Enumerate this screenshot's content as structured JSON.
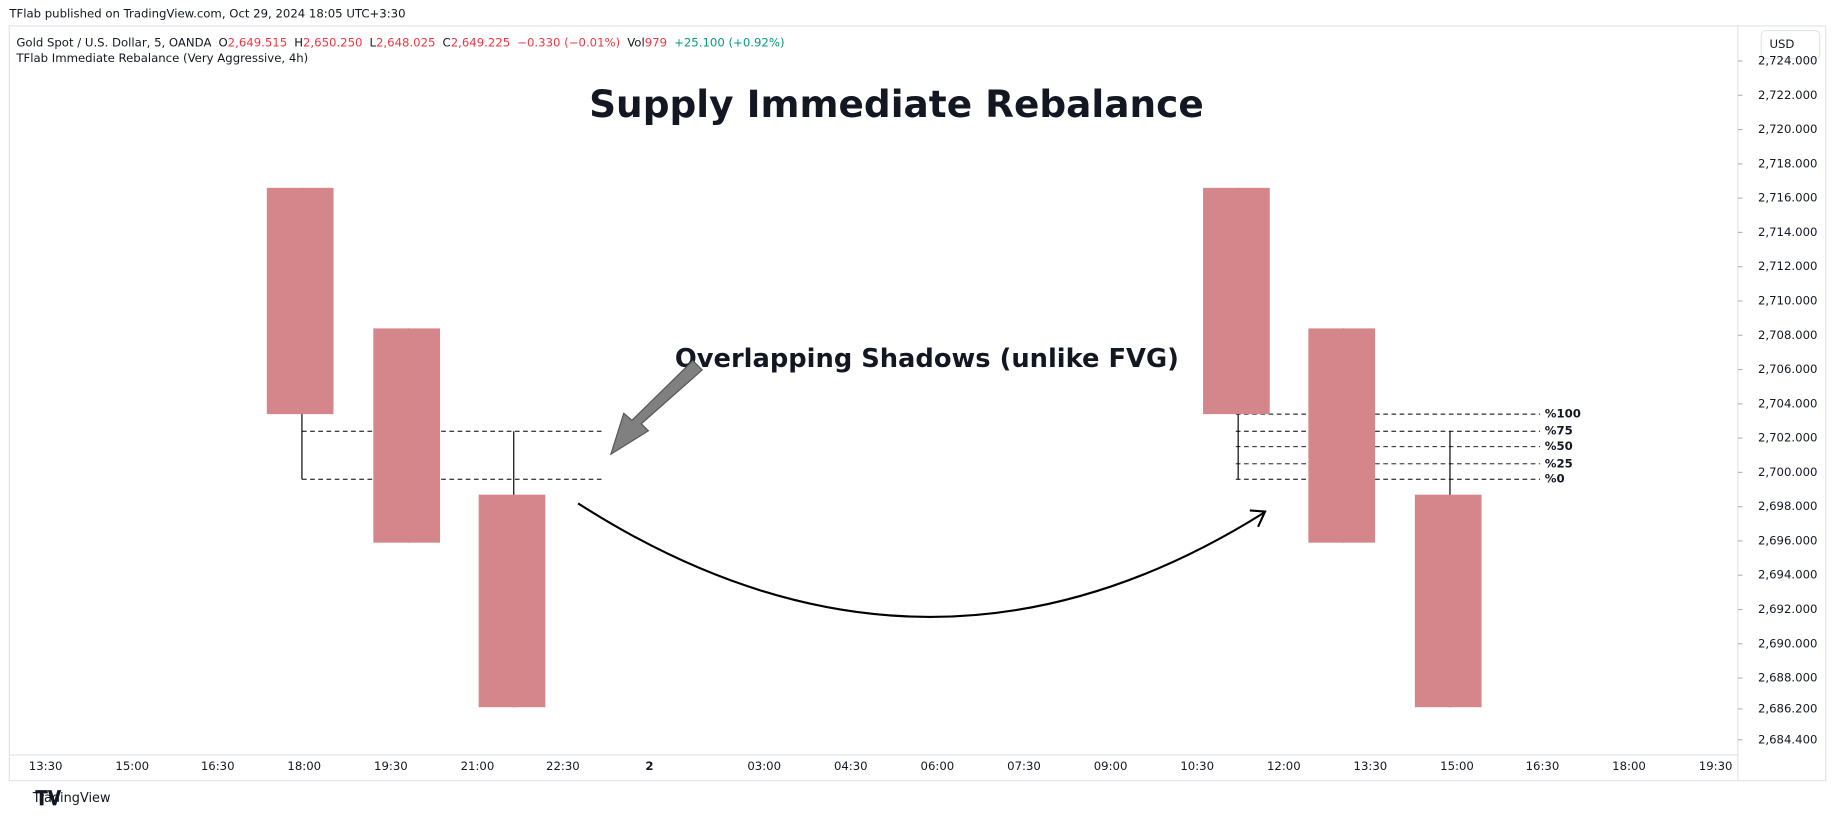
{
  "header": {
    "publisher": "TFlab published on TradingView.com, Oct 29, 2024 18:05 UTC+3:30",
    "symbol": "Gold Spot / U.S. Dollar, 5, OANDA",
    "ohlc": [
      {
        "key": "O",
        "value": "2,649.515"
      },
      {
        "key": "H",
        "value": "2,650.250"
      },
      {
        "key": "L",
        "value": "2,648.025"
      },
      {
        "key": "C",
        "value": "2,649.225"
      }
    ],
    "change": "−0.330 (−0.01%)",
    "vol_key": "Vol",
    "vol_value": "979",
    "vol_change": "+25.100 (+0.92%)",
    "indicator": "TFlab Immediate Rebalance (Very Aggressive, 4h)",
    "currency": "USD"
  },
  "footer": {
    "brand": "TradingView"
  },
  "chart_data": {
    "type": "candlestick",
    "title": "Supply Immediate Rebalance",
    "annotation": "Overlapping Shadows (unlike FVG)",
    "color": "#d4868b",
    "candles": [
      {
        "open": 2716.6,
        "high": 2716.6,
        "low": 2699.6,
        "close": 2703.4
      },
      {
        "open": 2708.4,
        "high": 2708.4,
        "low": 2695.9,
        "close": 2695.9
      },
      {
        "open": 2698.7,
        "high": 2702.4,
        "low": 2686.3,
        "close": 2686.3
      },
      {
        "open": 2716.6,
        "high": 2716.6,
        "low": 2699.6,
        "close": 2703.4
      },
      {
        "open": 2708.4,
        "high": 2708.4,
        "low": 2695.9,
        "close": 2695.9
      },
      {
        "open": 2698.7,
        "high": 2702.4,
        "low": 2686.3,
        "close": 2686.3
      }
    ],
    "levels": [
      {
        "label": "%100",
        "value": 2703.4
      },
      {
        "label": "%75",
        "value": 2702.4
      },
      {
        "label": "%50",
        "value": 2701.5
      },
      {
        "label": "%25",
        "value": 2700.5
      },
      {
        "label": "%0",
        "value": 2699.6
      }
    ],
    "x_labels": [
      "13:30",
      "15:00",
      "16:30",
      "18:00",
      "19:30",
      "21:00",
      "22:30",
      "2",
      "03:00",
      "04:30",
      "06:00",
      "07:30",
      "09:00",
      "10:30",
      "12:00",
      "13:30",
      "15:00",
      "16:30",
      "18:00",
      "19:30"
    ],
    "ylim": [
      2684.4,
      2724
    ],
    "yticks": [
      {
        "value": 2684.4,
        "label": "2,684.400"
      },
      {
        "value": 2686.2,
        "label": "2,686.200"
      },
      {
        "value": 2688,
        "label": "2,688.000"
      },
      {
        "value": 2690,
        "label": "2,690.000"
      },
      {
        "value": 2692,
        "label": "2,692.000"
      },
      {
        "value": 2694,
        "label": "2,694.000"
      },
      {
        "value": 2696,
        "label": "2,696.000"
      },
      {
        "value": 2698,
        "label": "2,698.000"
      },
      {
        "value": 2700,
        "label": "2,700.000"
      },
      {
        "value": 2702,
        "label": "2,702.000"
      },
      {
        "value": 2704,
        "label": "2,704.000"
      },
      {
        "value": 2706,
        "label": "2,706.000"
      },
      {
        "value": 2708,
        "label": "2,708.000"
      },
      {
        "value": 2710,
        "label": "2,710.000"
      },
      {
        "value": 2712,
        "label": "2,712.000"
      },
      {
        "value": 2714,
        "label": "2,714.000"
      },
      {
        "value": 2716,
        "label": "2,716.000"
      },
      {
        "value": 2718,
        "label": "2,718.000"
      },
      {
        "value": 2720,
        "label": "2,720.000"
      },
      {
        "value": 2722,
        "label": "2,722.000"
      },
      {
        "value": 2724,
        "label": "2,724.000"
      }
    ]
  }
}
